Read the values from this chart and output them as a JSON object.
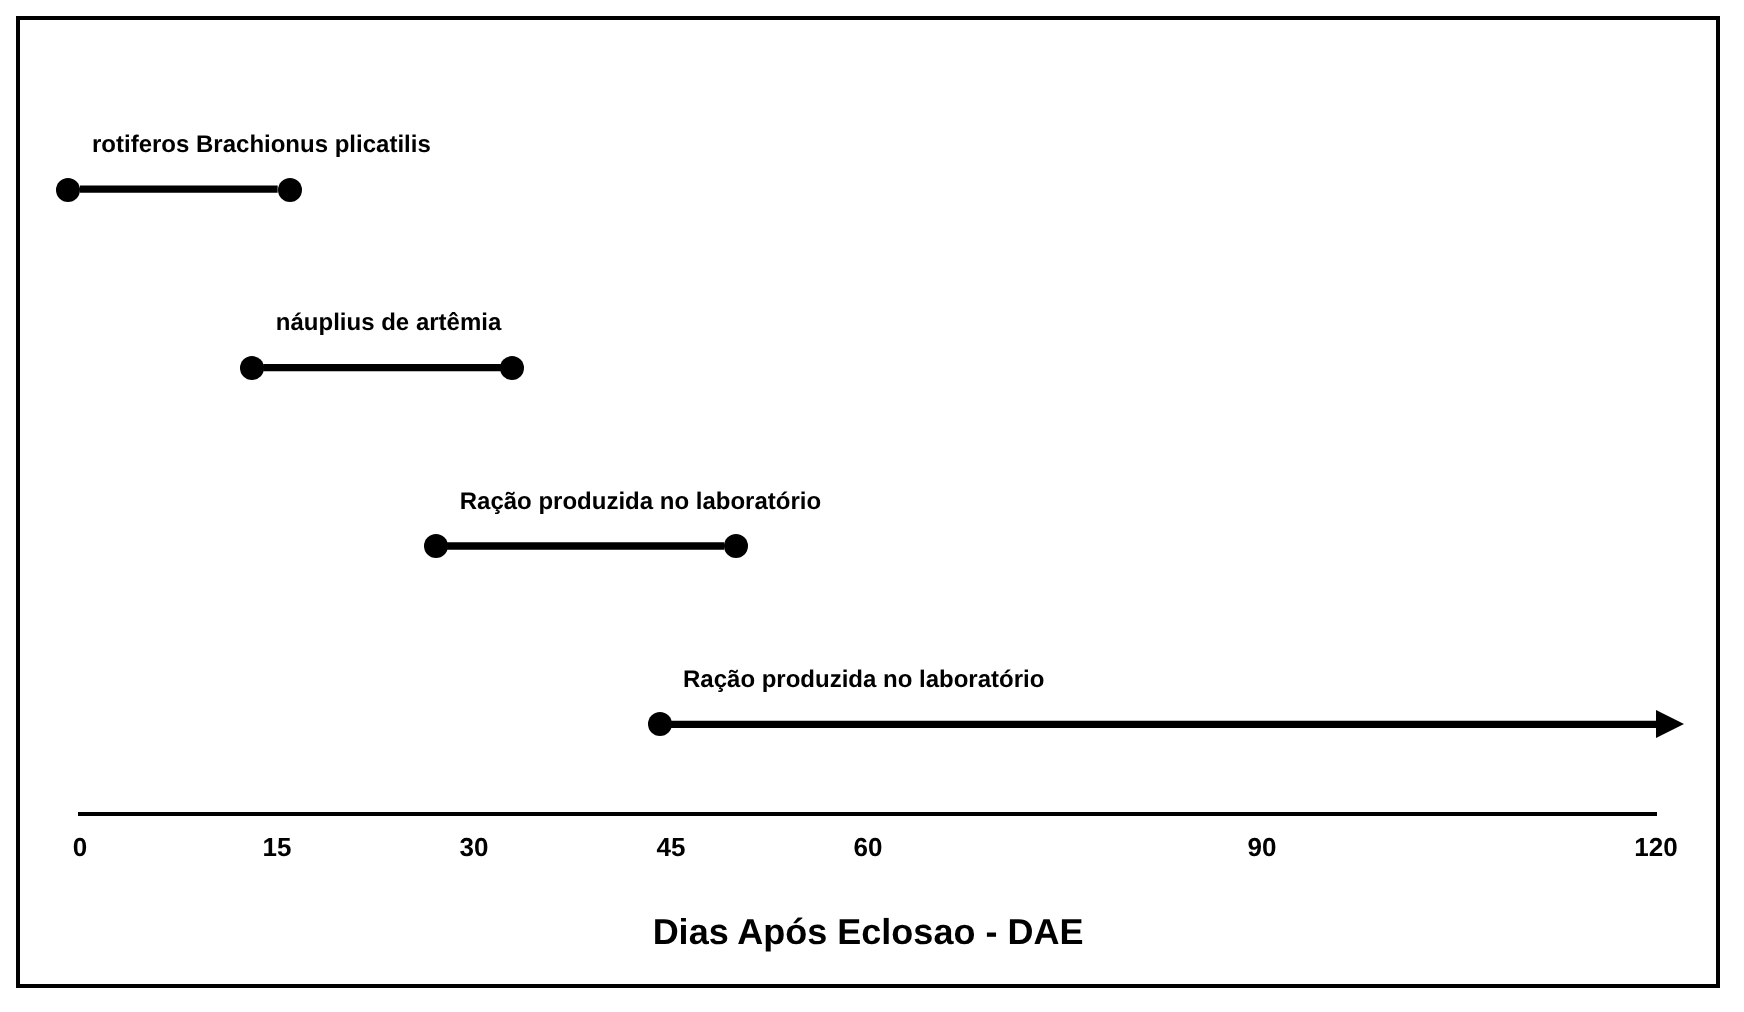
{
  "chart_data": {
    "type": "bar",
    "orientation": "horizontal",
    "categories": [
      "rotiferos Brachionus plicatilis",
      "náuplius de artêmia",
      "Ração produzida no laboratório",
      "Ração produzida no laboratório"
    ],
    "base": [
      0,
      14,
      28,
      45
    ],
    "values": [
      15,
      18,
      21,
      75
    ],
    "color": "#000000",
    "marker": "circle",
    "xlim": [
      0,
      120
    ],
    "xticks": [
      0,
      15,
      30,
      45,
      60,
      90,
      120
    ],
    "xlabel": "Dias Após Eclosao - DAE"
  }
}
